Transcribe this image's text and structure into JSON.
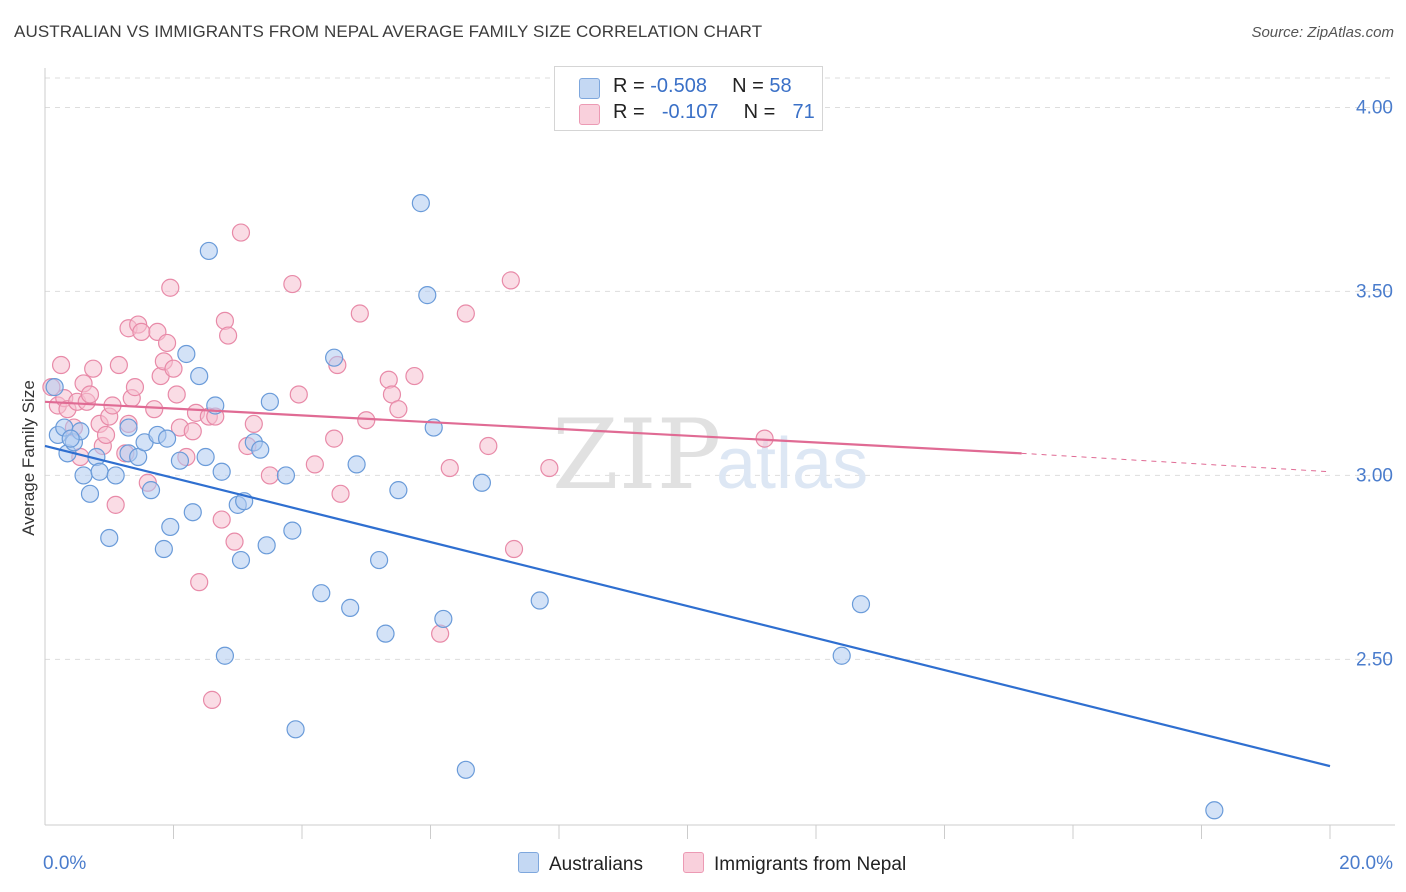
{
  "title": "AUSTRALIAN VS IMMIGRANTS FROM NEPAL AVERAGE FAMILY SIZE CORRELATION CHART",
  "source": "Source: ZipAtlas.com",
  "watermark": {
    "part1": "ZIP",
    "part2": "atlas"
  },
  "legend": {
    "rows": [
      {
        "r_label": "R =",
        "r_value": "-0.508",
        "n_label": "N =",
        "n_value": "58",
        "color": "#a9c6ee"
      },
      {
        "r_label": "R =",
        "r_value": "-0.107",
        "n_label": "N =",
        "n_value": "71",
        "color": "#f5b8cb"
      }
    ]
  },
  "bottom_legend": {
    "series1": "Australians",
    "series2": "Immigrants from Nepal"
  },
  "colors": {
    "blue_fill": "#aecbf0",
    "blue_stroke": "#6a9bd9",
    "blue_line": "#2f6fd0",
    "pink_fill": "#f6bfd0",
    "pink_stroke": "#e88aa8",
    "pink_line": "#e06b94",
    "grid": "#dddddd",
    "axis_text": "#4a7ccc"
  },
  "chart_data": {
    "type": "scatter",
    "title": "AUSTRALIAN VS IMMIGRANTS FROM NEPAL AVERAGE FAMILY SIZE CORRELATION CHART",
    "xlabel": "",
    "ylabel": "Average Family Size",
    "xlim": [
      0,
      20
    ],
    "ylim": [
      2.05,
      4.08
    ],
    "x_tick_labels": [
      "0.0%",
      "20.0%"
    ],
    "y_ticks": [
      2.5,
      3.0,
      3.5,
      4.0
    ],
    "y_tick_labels": [
      "2.50",
      "3.00",
      "3.50",
      "4.00"
    ],
    "grid": true,
    "legend_position": "top-center",
    "series": [
      {
        "name": "Australians",
        "r": -0.508,
        "n": 58,
        "trend": {
          "x": [
            0.0,
            20.0
          ],
          "y": [
            3.08,
            2.21
          ]
        },
        "points": [
          [
            0.15,
            3.24
          ],
          [
            0.2,
            3.11
          ],
          [
            0.3,
            3.13
          ],
          [
            0.35,
            3.06
          ],
          [
            0.45,
            3.09
          ],
          [
            0.55,
            3.12
          ],
          [
            0.6,
            3.0
          ],
          [
            0.7,
            2.95
          ],
          [
            0.8,
            3.05
          ],
          [
            0.85,
            3.01
          ],
          [
            1.0,
            2.83
          ],
          [
            1.1,
            3.0
          ],
          [
            1.3,
            3.13
          ],
          [
            1.3,
            3.06
          ],
          [
            1.45,
            3.05
          ],
          [
            1.55,
            3.09
          ],
          [
            1.65,
            2.96
          ],
          [
            1.75,
            3.11
          ],
          [
            1.85,
            2.8
          ],
          [
            1.9,
            3.1
          ],
          [
            1.95,
            2.86
          ],
          [
            2.1,
            3.04
          ],
          [
            2.2,
            3.33
          ],
          [
            2.3,
            2.9
          ],
          [
            2.4,
            3.27
          ],
          [
            2.5,
            3.05
          ],
          [
            2.55,
            3.61
          ],
          [
            2.65,
            3.19
          ],
          [
            2.75,
            3.01
          ],
          [
            2.8,
            2.51
          ],
          [
            3.0,
            2.92
          ],
          [
            3.1,
            2.93
          ],
          [
            3.05,
            2.77
          ],
          [
            3.25,
            3.09
          ],
          [
            3.35,
            3.07
          ],
          [
            3.45,
            2.81
          ],
          [
            3.5,
            3.2
          ],
          [
            3.75,
            3.0
          ],
          [
            3.85,
            2.85
          ],
          [
            3.9,
            2.31
          ],
          [
            4.3,
            2.68
          ],
          [
            4.5,
            3.32
          ],
          [
            4.75,
            2.64
          ],
          [
            4.85,
            3.03
          ],
          [
            5.2,
            2.77
          ],
          [
            5.3,
            2.57
          ],
          [
            5.5,
            2.96
          ],
          [
            5.85,
            3.74
          ],
          [
            5.95,
            3.49
          ],
          [
            6.05,
            3.13
          ],
          [
            6.2,
            2.61
          ],
          [
            6.55,
            2.2
          ],
          [
            6.8,
            2.98
          ],
          [
            7.7,
            2.66
          ],
          [
            12.4,
            2.51
          ],
          [
            12.7,
            2.65
          ],
          [
            18.2,
            2.09
          ],
          [
            0.4,
            3.1
          ]
        ]
      },
      {
        "name": "Immigrants from Nepal",
        "r": -0.107,
        "n": 71,
        "trend": {
          "x": [
            0.0,
            15.2
          ],
          "y": [
            3.2,
            3.06
          ]
        },
        "trend_dashed": {
          "x": [
            15.2,
            20.0
          ],
          "y": [
            3.06,
            3.01
          ]
        },
        "points": [
          [
            0.1,
            3.24
          ],
          [
            0.2,
            3.19
          ],
          [
            0.3,
            3.21
          ],
          [
            0.35,
            3.18
          ],
          [
            0.45,
            3.13
          ],
          [
            0.5,
            3.2
          ],
          [
            0.6,
            3.25
          ],
          [
            0.65,
            3.2
          ],
          [
            0.7,
            3.22
          ],
          [
            0.75,
            3.29
          ],
          [
            0.85,
            3.14
          ],
          [
            0.9,
            3.08
          ],
          [
            0.95,
            3.11
          ],
          [
            1.0,
            3.16
          ],
          [
            1.05,
            3.19
          ],
          [
            1.15,
            3.3
          ],
          [
            1.25,
            3.06
          ],
          [
            1.3,
            3.14
          ],
          [
            1.35,
            3.21
          ],
          [
            1.4,
            3.24
          ],
          [
            1.3,
            3.4
          ],
          [
            1.45,
            3.41
          ],
          [
            1.5,
            3.39
          ],
          [
            1.6,
            2.98
          ],
          [
            1.7,
            3.18
          ],
          [
            1.75,
            3.39
          ],
          [
            1.8,
            3.27
          ],
          [
            1.85,
            3.31
          ],
          [
            1.9,
            3.36
          ],
          [
            1.95,
            3.51
          ],
          [
            2.0,
            3.29
          ],
          [
            2.05,
            3.22
          ],
          [
            2.1,
            3.13
          ],
          [
            2.2,
            3.05
          ],
          [
            2.3,
            3.12
          ],
          [
            2.35,
            3.17
          ],
          [
            2.4,
            2.71
          ],
          [
            2.55,
            3.16
          ],
          [
            2.6,
            2.39
          ],
          [
            2.65,
            3.16
          ],
          [
            2.75,
            2.88
          ],
          [
            2.8,
            3.42
          ],
          [
            2.85,
            3.38
          ],
          [
            2.95,
            2.82
          ],
          [
            3.05,
            3.66
          ],
          [
            3.15,
            3.08
          ],
          [
            3.25,
            3.14
          ],
          [
            3.85,
            3.52
          ],
          [
            3.95,
            3.22
          ],
          [
            4.2,
            3.03
          ],
          [
            4.5,
            3.1
          ],
          [
            4.55,
            3.3
          ],
          [
            4.6,
            2.95
          ],
          [
            4.9,
            3.44
          ],
          [
            5.35,
            3.26
          ],
          [
            5.4,
            3.22
          ],
          [
            5.5,
            3.18
          ],
          [
            5.75,
            3.27
          ],
          [
            6.15,
            2.57
          ],
          [
            6.3,
            3.02
          ],
          [
            6.55,
            3.44
          ],
          [
            6.9,
            3.08
          ],
          [
            7.25,
            3.53
          ],
          [
            7.3,
            2.8
          ],
          [
            7.85,
            3.02
          ],
          [
            11.2,
            3.1
          ],
          [
            0.25,
            3.3
          ],
          [
            0.55,
            3.05
          ],
          [
            1.1,
            2.92
          ],
          [
            3.5,
            3.0
          ],
          [
            5.0,
            3.15
          ]
        ]
      }
    ]
  }
}
